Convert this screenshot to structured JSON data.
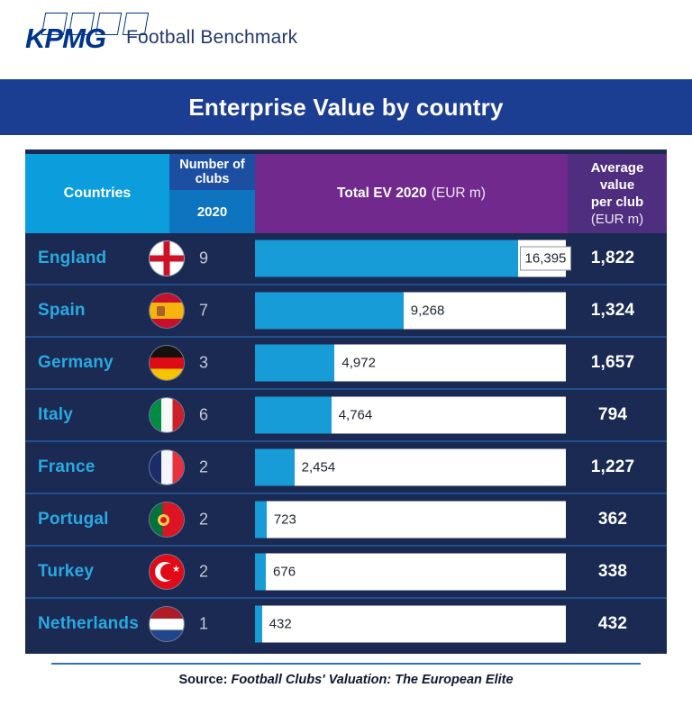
{
  "header": {
    "brand": "KPMG",
    "product": "Football Benchmark"
  },
  "banner": {
    "title": "Enterprise Value by country"
  },
  "table_headers": {
    "countries": "Countries",
    "clubs_label": "Number of clubs",
    "clubs_year": "2020",
    "ev_label": "Total EV 2020",
    "ev_unit": "(EUR m)",
    "avg_line1": "Average",
    "avg_line2": "value",
    "avg_line3": "per club",
    "avg_unit": "(EUR m)"
  },
  "rows": [
    {
      "country": "England",
      "flag": "england",
      "clubs": "9",
      "ev": "16,395",
      "ev_value": 16395,
      "avg": "1,822",
      "label_boxed": true
    },
    {
      "country": "Spain",
      "flag": "spain",
      "clubs": "7",
      "ev": "9,268",
      "ev_value": 9268,
      "avg": "1,324",
      "label_boxed": false
    },
    {
      "country": "Germany",
      "flag": "germany",
      "clubs": "3",
      "ev": "4,972",
      "ev_value": 4972,
      "avg": "1,657",
      "label_boxed": false
    },
    {
      "country": "Italy",
      "flag": "italy",
      "clubs": "6",
      "ev": "4,764",
      "ev_value": 4764,
      "avg": "794",
      "label_boxed": false
    },
    {
      "country": "France",
      "flag": "france",
      "clubs": "2",
      "ev": "2,454",
      "ev_value": 2454,
      "avg": "1,227",
      "label_boxed": false
    },
    {
      "country": "Portugal",
      "flag": "portugal",
      "clubs": "2",
      "ev": "723",
      "ev_value": 723,
      "avg": "362",
      "label_boxed": false
    },
    {
      "country": "Turkey",
      "flag": "turkey",
      "clubs": "2",
      "ev": "676",
      "ev_value": 676,
      "avg": "338",
      "label_boxed": false
    },
    {
      "country": "Netherlands",
      "flag": "netherlands",
      "clubs": "1",
      "ev": "432",
      "ev_value": 432,
      "avg": "432",
      "label_boxed": false
    }
  ],
  "chart_data": {
    "type": "bar",
    "title": "Enterprise Value by country",
    "categories": [
      "England",
      "Spain",
      "Germany",
      "Italy",
      "France",
      "Portugal",
      "Turkey",
      "Netherlands"
    ],
    "series": [
      {
        "name": "Number of clubs 2020",
        "values": [
          9,
          7,
          3,
          6,
          2,
          2,
          2,
          1
        ]
      },
      {
        "name": "Total EV 2020 (EUR m)",
        "values": [
          16395,
          9268,
          4972,
          4764,
          2454,
          723,
          676,
          432
        ]
      },
      {
        "name": "Average value per club (EUR m)",
        "values": [
          1822,
          1324,
          1657,
          794,
          1227,
          362,
          338,
          432
        ]
      }
    ],
    "xlabel": "Total EV 2020 (EUR m)",
    "ylabel": "Countries",
    "xlim": [
      0,
      16395
    ],
    "grid": false,
    "legend_position": "none",
    "orientation": "horizontal"
  },
  "footer": {
    "source_label": "Source:",
    "source_title": "Football Clubs' Valuation: The European Elite"
  },
  "colors": {
    "brand_blue": "#00338d",
    "banner_blue": "#1c3e92",
    "table_navy": "#1a2a52",
    "light_blue": "#0c9ddc",
    "bar_blue": "#189cd8",
    "clubs_header_blue": "#1c4fa1",
    "year_header_blue": "#0e74bf",
    "ev_header_purple": "#71298d",
    "avg_header_purple": "#4f2d7f",
    "country_text_blue": "#2aa9e0",
    "row_separator_blue": "#234f8e"
  }
}
